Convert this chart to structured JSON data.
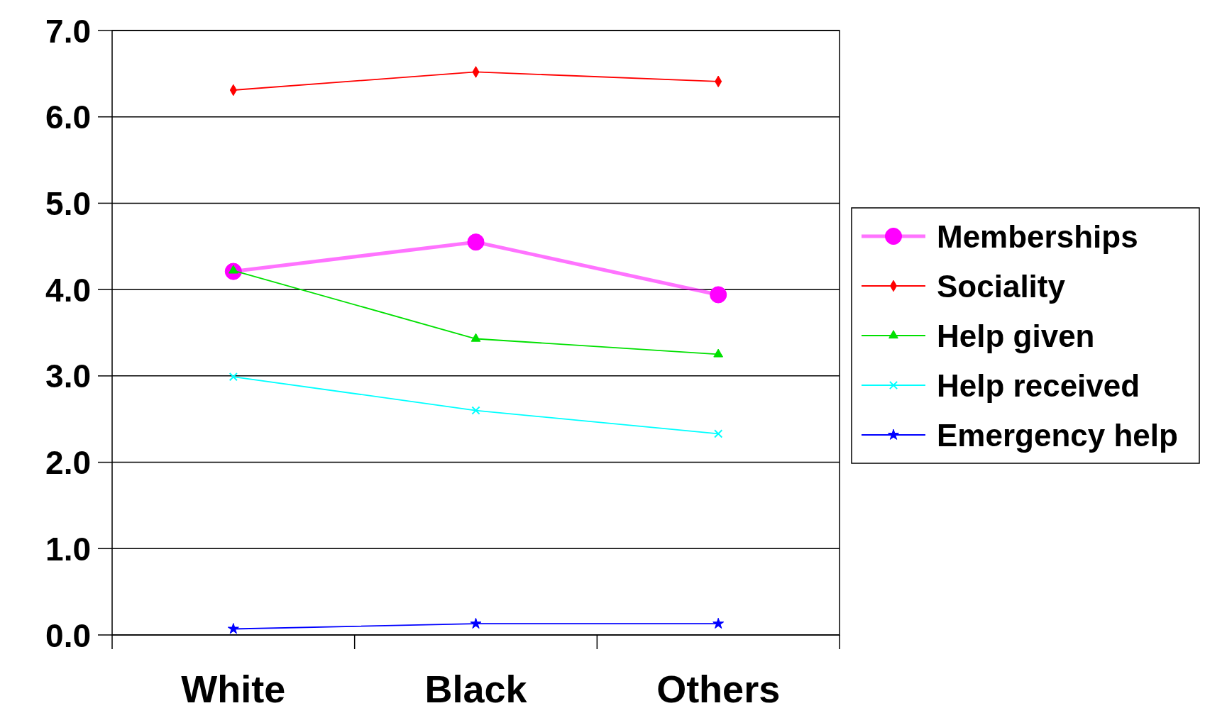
{
  "chart_data": {
    "type": "line",
    "categories": [
      "White",
      "Black",
      "Others"
    ],
    "series": [
      {
        "name": "Memberships",
        "color": "#ff00ff",
        "values": [
          4.21,
          4.55,
          3.94
        ],
        "marker": "circle"
      },
      {
        "name": "Sociality",
        "color": "#ff0000",
        "values": [
          6.31,
          6.52,
          6.41
        ],
        "marker": "diamond"
      },
      {
        "name": "Help given",
        "color": "#00e000",
        "values": [
          4.22,
          3.43,
          3.25
        ],
        "marker": "triangle"
      },
      {
        "name": "Help received",
        "color": "#00ffff",
        "values": [
          2.99,
          2.6,
          2.33
        ],
        "marker": "cross"
      },
      {
        "name": "Emergency help",
        "color": "#0000ff",
        "values": [
          0.07,
          0.13,
          0.13
        ],
        "marker": "star"
      }
    ],
    "ylim": [
      0,
      7
    ],
    "yticks": [
      {
        "value": 0,
        "label": "0.0"
      },
      {
        "value": 1,
        "label": "1.0"
      },
      {
        "value": 2,
        "label": "2.0"
      },
      {
        "value": 3,
        "label": "3.0"
      },
      {
        "value": 4,
        "label": "4.0"
      },
      {
        "value": 5,
        "label": "5.0"
      },
      {
        "value": 6,
        "label": "6.0"
      },
      {
        "value": 7,
        "label": "7.0"
      }
    ],
    "grid": "y",
    "legend": "right",
    "line_style": "solid"
  }
}
